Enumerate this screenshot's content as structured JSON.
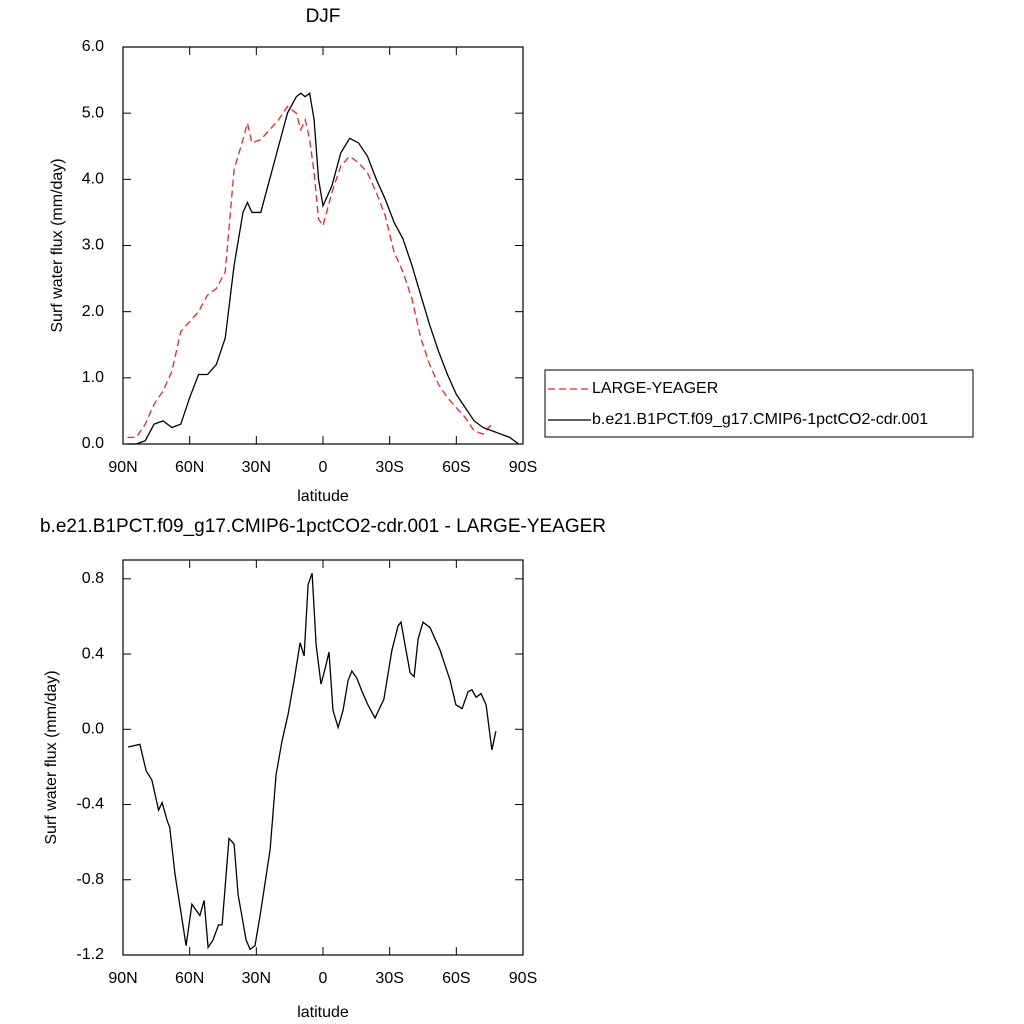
{
  "chart_data": [
    {
      "type": "line",
      "title": "DJF",
      "xlabel": "latitude",
      "ylabel": "Surf water flux (mm/day)",
      "x": [
        88,
        84,
        80,
        76,
        72,
        68,
        64,
        60,
        56,
        52,
        48,
        44,
        40,
        36,
        34,
        32,
        28,
        24,
        20,
        16,
        12,
        10,
        8,
        6,
        4,
        2,
        0,
        -4,
        -8,
        -12,
        -16,
        -20,
        -24,
        -28,
        -32,
        -36,
        -40,
        -44,
        -48,
        -52,
        -56,
        -60,
        -64,
        -68,
        -72,
        -76,
        -80,
        -84,
        -88
      ],
      "series": [
        {
          "name": "LARGE-YEAGER",
          "color": "#e8262b",
          "dashed": true,
          "values": [
            0.1,
            0.1,
            0.3,
            0.6,
            0.8,
            1.1,
            1.7,
            1.85,
            2.0,
            2.25,
            2.35,
            2.6,
            4.15,
            4.6,
            4.85,
            4.55,
            4.6,
            4.75,
            4.9,
            5.1,
            5.0,
            4.75,
            4.9,
            4.6,
            4.1,
            3.4,
            3.3,
            3.8,
            4.2,
            4.35,
            4.25,
            4.1,
            3.8,
            3.45,
            2.9,
            2.6,
            2.2,
            1.6,
            1.2,
            0.9,
            0.7,
            0.55,
            0.4,
            0.2,
            0.15,
            0.3,
            null,
            null,
            null
          ]
        },
        {
          "name": "b.e21.B1PCT.f09_g17.CMIP6-1pctCO2-cdr.001",
          "color": "#000000",
          "dashed": false,
          "values": [
            0,
            0,
            0.05,
            0.3,
            0.35,
            0.25,
            0.3,
            0.7,
            1.05,
            1.05,
            1.2,
            1.6,
            2.7,
            3.5,
            3.65,
            3.5,
            3.5,
            4.0,
            4.5,
            5.0,
            5.25,
            5.3,
            5.25,
            5.3,
            4.9,
            4.0,
            3.6,
            3.9,
            4.4,
            4.62,
            4.55,
            4.35,
            4.0,
            3.7,
            3.35,
            3.1,
            2.7,
            2.25,
            1.8,
            1.4,
            1.05,
            0.75,
            0.55,
            0.35,
            0.25,
            0.2,
            0.15,
            0.1,
            0
          ]
        }
      ],
      "xlim": [
        90,
        -90
      ],
      "xticks": [
        {
          "value": 90,
          "label": "90N"
        },
        {
          "value": 60,
          "label": "60N"
        },
        {
          "value": 30,
          "label": "30N"
        },
        0,
        {
          "value": -30,
          "label": "30S"
        },
        {
          "value": -60,
          "label": "60S"
        },
        {
          "value": -90,
          "label": "90S"
        }
      ],
      "ylim": [
        0,
        6
      ],
      "yticks": [
        {
          "value": 0,
          "label": "0.0"
        },
        {
          "value": 1,
          "label": "1.0"
        },
        {
          "value": 2,
          "label": "2.0"
        },
        {
          "value": 3,
          "label": "3.0"
        },
        {
          "value": 4,
          "label": "4.0"
        },
        {
          "value": 5,
          "label": "5.0"
        },
        {
          "value": 6,
          "label": "6.0"
        }
      ],
      "legend": "right"
    },
    {
      "type": "line",
      "title": "b.e21.B1PCT.f09_g17.CMIP6-1pctCO2-cdr.001 - LARGE-YEAGER",
      "xlabel": "latitude",
      "ylabel": "Surf water flux (mm/day)",
      "x": [
        87.7,
        82.4,
        79.6,
        77,
        74,
        72.4,
        70,
        69,
        66.6,
        61.6,
        59,
        55.4,
        53.5,
        51.7,
        49.5,
        47,
        45.4,
        42.3,
        40,
        38.2,
        34.6,
        32.8,
        30.6,
        28.3,
        23.8,
        21.1,
        18.4,
        15.7,
        13,
        10.3,
        8.5,
        6.7,
        4.9,
        3.1,
        0.9,
        -0.9,
        -2.7,
        -4.5,
        -6.8,
        -9,
        -11.3,
        -13,
        -15.3,
        -17.6,
        -20.2,
        -23.4,
        -27.4,
        -31,
        -33.8,
        -35.1,
        -36.9,
        -39.2,
        -41,
        -42.8,
        -45,
        -48.2,
        -52.7,
        -57.2,
        -59.8,
        -62.6,
        -65.3,
        -67,
        -68.9,
        -71.1,
        -73.4,
        -76,
        -77.8
      ],
      "color": "#000000",
      "values": [
        -0.094,
        -0.08,
        -0.22,
        -0.27,
        -0.43,
        -0.39,
        -0.49,
        -0.52,
        -0.77,
        -1.15,
        -0.93,
        -0.99,
        -0.91,
        -1.16,
        -1.12,
        -1.04,
        -1.04,
        -0.58,
        -0.61,
        -0.88,
        -1.12,
        -1.17,
        -1.15,
        -0.99,
        -0.64,
        -0.24,
        -0.06,
        0.08,
        0.26,
        0.46,
        0.39,
        0.77,
        0.83,
        0.45,
        0.24,
        0.32,
        0.41,
        0.1,
        0.01,
        0.1,
        0.26,
        0.31,
        0.27,
        0.2,
        0.13,
        0.06,
        0.16,
        0.42,
        0.55,
        0.57,
        0.45,
        0.3,
        0.28,
        0.48,
        0.57,
        0.54,
        0.42,
        0.26,
        0.13,
        0.11,
        0.2,
        0.21,
        0.17,
        0.19,
        0.13,
        -0.11,
        -0.01
      ],
      "xlim": [
        90,
        -90
      ],
      "xticks": [
        {
          "value": 90,
          "label": "90N"
        },
        {
          "value": 60,
          "label": "60N"
        },
        {
          "value": 30,
          "label": "30N"
        },
        0,
        {
          "value": -30,
          "label": "30S"
        },
        {
          "value": -60,
          "label": "60S"
        },
        {
          "value": -90,
          "label": "90S"
        }
      ],
      "ylim": [
        -1.2,
        0.9
      ],
      "yticks": [
        -1.2,
        -0.8,
        -0.4,
        {
          "value": 0,
          "label": "0.0"
        },
        0.4,
        0.8
      ]
    }
  ]
}
